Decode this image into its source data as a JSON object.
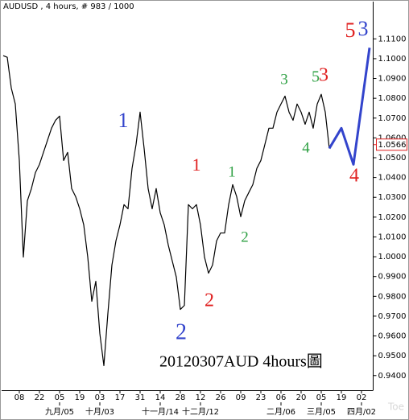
{
  "chart_data": {
    "type": "line",
    "title": "AUDUSD , 4 hours, # 983 / 1000",
    "annotation": "20120307AUD 4hours圖",
    "watermark": "Toe",
    "categories": [
      null,
      null,
      null,
      null,
      "08",
      null,
      null,
      null,
      null,
      "22",
      null,
      null,
      null,
      null,
      "05",
      null,
      null,
      null,
      null,
      "19",
      null,
      null,
      null,
      null,
      "03",
      null,
      null,
      null,
      null,
      "17",
      null,
      null,
      null,
      null,
      "31",
      null,
      null,
      null,
      null,
      "14",
      null,
      null,
      null,
      null,
      "28",
      null,
      null,
      null,
      null,
      "12",
      null,
      null,
      null,
      null,
      "26",
      null,
      null,
      null,
      null,
      "09",
      null,
      null,
      null,
      null,
      "23",
      null,
      null,
      null,
      null,
      "06",
      null,
      null,
      null,
      null,
      "20",
      null,
      null,
      null,
      null,
      "05",
      null,
      null,
      null,
      null,
      "19",
      null,
      null,
      null,
      null,
      "02",
      null,
      null
    ],
    "month_categories": [
      null,
      null,
      null,
      null,
      null,
      null,
      null,
      null,
      null,
      null,
      null,
      null,
      null,
      null,
      "九月/05",
      null,
      null,
      null,
      null,
      null,
      null,
      null,
      null,
      null,
      "十月/03",
      null,
      null,
      null,
      null,
      null,
      null,
      null,
      null,
      null,
      null,
      null,
      null,
      null,
      null,
      "十一月/14",
      null,
      null,
      null,
      null,
      null,
      null,
      null,
      null,
      null,
      "十二月/12",
      null,
      null,
      null,
      null,
      null,
      null,
      null,
      null,
      null,
      null,
      null,
      null,
      null,
      null,
      null,
      null,
      null,
      null,
      null,
      "二月/06",
      null,
      null,
      null,
      null,
      null,
      null,
      null,
      null,
      null,
      "三月/05",
      null,
      null,
      null,
      null,
      null,
      null,
      null,
      null,
      null,
      "四月/02",
      null,
      null
    ],
    "series": [
      {
        "color": "#000000",
        "values": [
          1.1015,
          1.1007,
          1.0852,
          1.0771,
          1.0486,
          0.9998,
          1.0283,
          1.0344,
          1.0425,
          1.0466,
          1.0527,
          1.0588,
          1.0649,
          1.0689,
          1.071,
          1.0486,
          1.0527,
          1.0344,
          1.0303,
          1.0242,
          1.0161,
          0.9998,
          0.9775,
          0.9876,
          0.9612,
          0.945,
          0.9714,
          0.9958,
          1.008,
          1.0161,
          1.0263,
          1.0242,
          1.0446,
          1.0567,
          1.073,
          1.0547,
          1.0344,
          1.0242,
          1.0344,
          1.0222,
          1.0161,
          1.0059,
          0.9978,
          0.9897,
          0.9734,
          0.9754,
          1.0263,
          1.0242,
          1.0263,
          1.0161,
          0.9998,
          0.9917,
          0.9958,
          1.008,
          1.012,
          1.012,
          1.0263,
          1.0364,
          1.0303,
          1.0202,
          1.0283,
          1.0324,
          1.0364,
          1.0446,
          1.0486,
          1.0567,
          1.0649,
          1.0649,
          1.073,
          1.0771,
          1.0811,
          1.073,
          1.0689,
          1.0771,
          1.073,
          1.0669,
          1.073,
          1.0649,
          1.0771,
          1.082,
          1.073,
          1.0547,
          null,
          null,
          null,
          null,
          null,
          null,
          null,
          null,
          null,
          null
        ]
      },
      {
        "color": "#3344cc",
        "values": [
          null,
          null,
          null,
          null,
          null,
          null,
          null,
          null,
          null,
          null,
          null,
          null,
          null,
          null,
          null,
          null,
          null,
          null,
          null,
          null,
          null,
          null,
          null,
          null,
          null,
          null,
          null,
          null,
          null,
          null,
          null,
          null,
          null,
          null,
          null,
          null,
          null,
          null,
          null,
          null,
          null,
          null,
          null,
          null,
          null,
          null,
          null,
          null,
          null,
          null,
          null,
          null,
          null,
          null,
          null,
          null,
          null,
          null,
          null,
          null,
          null,
          null,
          null,
          null,
          null,
          null,
          null,
          null,
          null,
          null,
          null,
          null,
          null,
          null,
          null,
          null,
          null,
          null,
          null,
          null,
          null,
          1.0547,
          1.0581,
          1.0615,
          1.0649,
          1.0588,
          1.0527,
          1.0466,
          1.0613,
          1.076,
          1.0908,
          1.1055
        ]
      }
    ],
    "last_price": 1.0566,
    "last_price_color": "#e02020",
    "ylim": [
      0.933,
      1.128
    ],
    "yticks": [
      {
        "value": 1.11,
        "label": "1.1100"
      },
      {
        "value": 1.1,
        "label": "1.1000"
      },
      {
        "value": 1.09,
        "label": "1.0900"
      },
      {
        "value": 1.08,
        "label": "1.0800"
      },
      {
        "value": 1.07,
        "label": "1.0700"
      },
      {
        "value": 1.06,
        "label": "1.0600"
      },
      {
        "value": 1.05,
        "label": "1.0500"
      },
      {
        "value": 1.04,
        "label": "1.0400"
      },
      {
        "value": 1.03,
        "label": "1.0300"
      },
      {
        "value": 1.02,
        "label": "1.0200"
      },
      {
        "value": 1.01,
        "label": "1.0100"
      },
      {
        "value": 1.0,
        "label": "1.0000"
      },
      {
        "value": 0.99,
        "label": "0.9900"
      },
      {
        "value": 0.98,
        "label": "0.9800"
      },
      {
        "value": 0.97,
        "label": "0.9700"
      },
      {
        "value": 0.96,
        "label": "0.9600"
      },
      {
        "value": 0.95,
        "label": "0.9500"
      },
      {
        "value": 0.94,
        "label": "0.9400"
      }
    ],
    "wave_labels": [
      {
        "text": "1",
        "color": "#3344cc"
      },
      {
        "text": "2",
        "color": "#3344cc"
      },
      {
        "text": "1",
        "color": "#e02020"
      },
      {
        "text": "2",
        "color": "#e02020"
      },
      {
        "text": "1",
        "color": "#2ea043"
      },
      {
        "text": "2",
        "color": "#2ea043"
      },
      {
        "text": "3",
        "color": "#2ea043"
      },
      {
        "text": "4",
        "color": "#2ea043"
      },
      {
        "text": "5",
        "color": "#2ea043"
      },
      {
        "text": "3",
        "color": "#e02020"
      },
      {
        "text": "4",
        "color": "#e02020"
      },
      {
        "text": "5",
        "color": "#e02020"
      },
      {
        "text": "3",
        "color": "#3344cc"
      }
    ]
  }
}
